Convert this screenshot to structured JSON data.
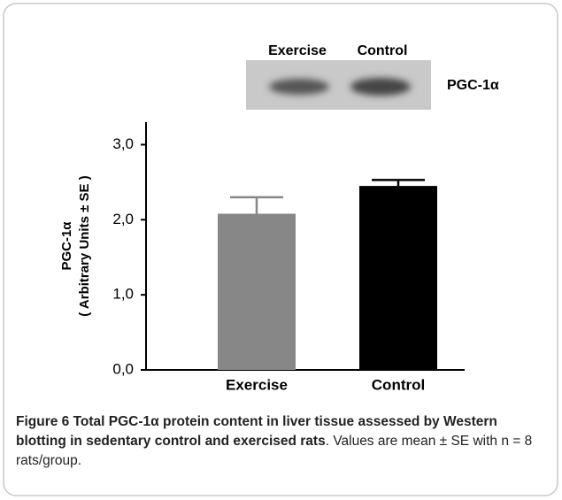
{
  "chart_data": {
    "type": "bar",
    "blot": {
      "lanes": [
        "Exercise",
        "Control"
      ],
      "label": "PGC-1α"
    },
    "ylabel": [
      "PGC-1α",
      "( Arbitrary Units ± SE )"
    ],
    "categories": [
      "Exercise",
      "Control"
    ],
    "values": [
      2.08,
      2.45
    ],
    "errors": [
      0.22,
      0.08
    ],
    "colors": [
      "#878787",
      "#000000"
    ],
    "ylim": [
      0,
      3.3
    ],
    "yticks": [
      {
        "value": 0,
        "label": "0,0"
      },
      {
        "value": 1,
        "label": "1,0"
      },
      {
        "value": 2,
        "label": "2,0"
      },
      {
        "value": 3,
        "label": "3,0"
      }
    ],
    "grid": false
  },
  "caption": {
    "label": "Figure 6",
    "bold_text": "Total PGC-1α protein content in liver tissue assessed by Western blotting in sedentary control and exercised rats",
    "text": ". Values are mean ± SE with n = 8 rats/group."
  }
}
